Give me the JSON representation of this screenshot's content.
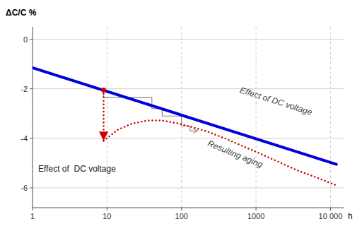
{
  "chart_data": {
    "type": "line",
    "log": "x",
    "grid": true,
    "x_label": "h",
    "y_label": "ΔC/C %",
    "xlim": [
      1,
      15000
    ],
    "ylim": [
      -6.8,
      0.5
    ],
    "xticks": [
      1,
      10,
      100,
      1000,
      {
        "value": 10000,
        "label": "10 000"
      }
    ],
    "yticks": [
      0,
      -2,
      -4,
      -6
    ],
    "series": [
      {
        "x": [
          1,
          12000
        ],
        "values": [
          -1.15,
          -5.05
        ],
        "color": "#0000dd",
        "line_style": "solid"
      },
      {
        "x": [
          9,
          9
        ],
        "values": [
          -2.05,
          -4.1
        ],
        "color": "#cc0000",
        "line_style": "dotted"
      },
      {
        "x": [
          9,
          14,
          22,
          35,
          55,
          90,
          140,
          220,
          380,
          650,
          1100,
          2000,
          3500,
          7000,
          12000
        ],
        "values": [
          -4.1,
          -3.65,
          -3.4,
          -3.28,
          -3.28,
          -3.4,
          -3.55,
          -3.72,
          -4.0,
          -4.3,
          -4.6,
          -4.95,
          -5.28,
          -5.62,
          -5.9
        ],
        "color": "#cc0000",
        "line_style": "dotted"
      },
      {
        "x": [
          9,
          9,
          40,
          40,
          55,
          55,
          100,
          100,
          130,
          130,
          165
        ],
        "values": [
          -2.05,
          -2.35,
          -2.35,
          -2.8,
          -2.8,
          -3.1,
          -3.1,
          -3.5,
          -3.5,
          -3.7,
          -3.7
        ],
        "color": "#888888",
        "line_style": "solid"
      },
      {
        "type": "scatter",
        "x": [
          9
        ],
        "values": [
          -2.05
        ],
        "color": "#cc0000",
        "marker": "circle"
      }
    ],
    "annotations": [
      "Effect of DC voltage",
      "Effect of  DC voltage",
      "Resulting aging"
    ]
  }
}
